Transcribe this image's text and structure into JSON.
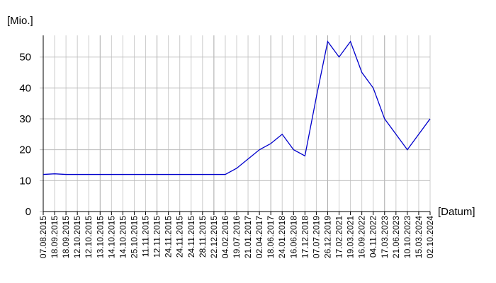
{
  "chart_data": {
    "type": "line",
    "y_label": "[Mio.]",
    "x_label": "[Datum]",
    "categories": [
      "07.08.2015",
      "18.09.2015",
      "18.09.2015",
      "12.10.2015",
      "12.10.2015",
      "13.10.2015",
      "14.10.2015",
      "14.10.2015",
      "25.10.2015",
      "11.11.2015",
      "12.11.2015",
      "24.11.2015",
      "24.11.2015",
      "24.11.2015",
      "28.11.2015",
      "22.12.2015",
      "04.02.2016",
      "19.07.2016",
      "21.01.2017",
      "02.04.2017",
      "18.06.2017",
      "24.01.2018",
      "16.06.2018",
      "17.12.2018",
      "07.07.2019",
      "26.12.2019",
      "17.02.2021",
      "19.03.2021",
      "16.09.2022",
      "04.11.2022",
      "17.03.2023",
      "21.06.2023",
      "10.10.2023",
      "15.03.2024",
      "02.10.2024"
    ],
    "values": [
      12,
      12.2,
      12,
      12,
      12,
      12,
      12,
      12,
      12,
      12,
      12,
      12,
      12,
      12,
      12,
      12,
      12,
      14,
      17,
      20,
      22,
      25,
      20,
      18,
      37,
      55,
      50,
      55,
      45,
      40,
      30,
      25,
      20,
      25,
      30
    ],
    "color": "#0000cc",
    "ylim": [
      0,
      57
    ],
    "yticks": [
      0,
      10,
      20,
      30,
      40,
      50
    ],
    "grid": true
  }
}
